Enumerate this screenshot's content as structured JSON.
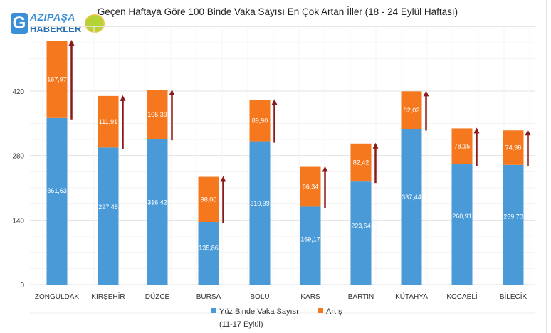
{
  "logo": {
    "line1": "AZIPAŞA",
    "line2": "HABERLER",
    "letter": "G"
  },
  "chart_data": {
    "type": "bar",
    "stacked": true,
    "title": "Geçen Haftaya Göre 100 Binde Vaka Sayısı En Çok Artan İller (18 - 24 Eylül Haftası)",
    "categories": [
      "ZONGULDAK",
      "KIRŞEHİR",
      "DÜZCE",
      "BURSA",
      "BOLU",
      "KARS",
      "BARTIN",
      "KÜTAHYA",
      "KOCAELİ",
      "BİLECİK"
    ],
    "series": [
      {
        "name": "Yüz Binde Vaka Sayısı",
        "name2": "(11-17 Eylül)",
        "color": "#4a9ad8",
        "values": [
          361.63,
          297.48,
          316.42,
          135.86,
          310.99,
          169.17,
          223.64,
          337.44,
          260.91,
          259.7
        ],
        "labels": [
          "361,63",
          "297,48",
          "316,42",
          "135,86",
          "310,99",
          "169,17",
          "223,64",
          "337,44",
          "260,91",
          "259,70"
        ]
      },
      {
        "name": "Artış",
        "color": "#f5781e",
        "values": [
          167.97,
          111.91,
          105.39,
          98.0,
          89.9,
          86.34,
          82.42,
          82.02,
          78.15,
          74.98
        ],
        "labels": [
          "167,97",
          "111,91",
          "105,39",
          "98,00",
          "89,90",
          "86,34",
          "82,42",
          "82,02",
          "78,15",
          "74,98"
        ]
      }
    ],
    "yticks": [
      "0",
      "140",
      "280",
      "420"
    ],
    "ylim": [
      0,
      560
    ],
    "grid": true,
    "legend": "bottom",
    "arrow_color": "#8b1a1a"
  }
}
